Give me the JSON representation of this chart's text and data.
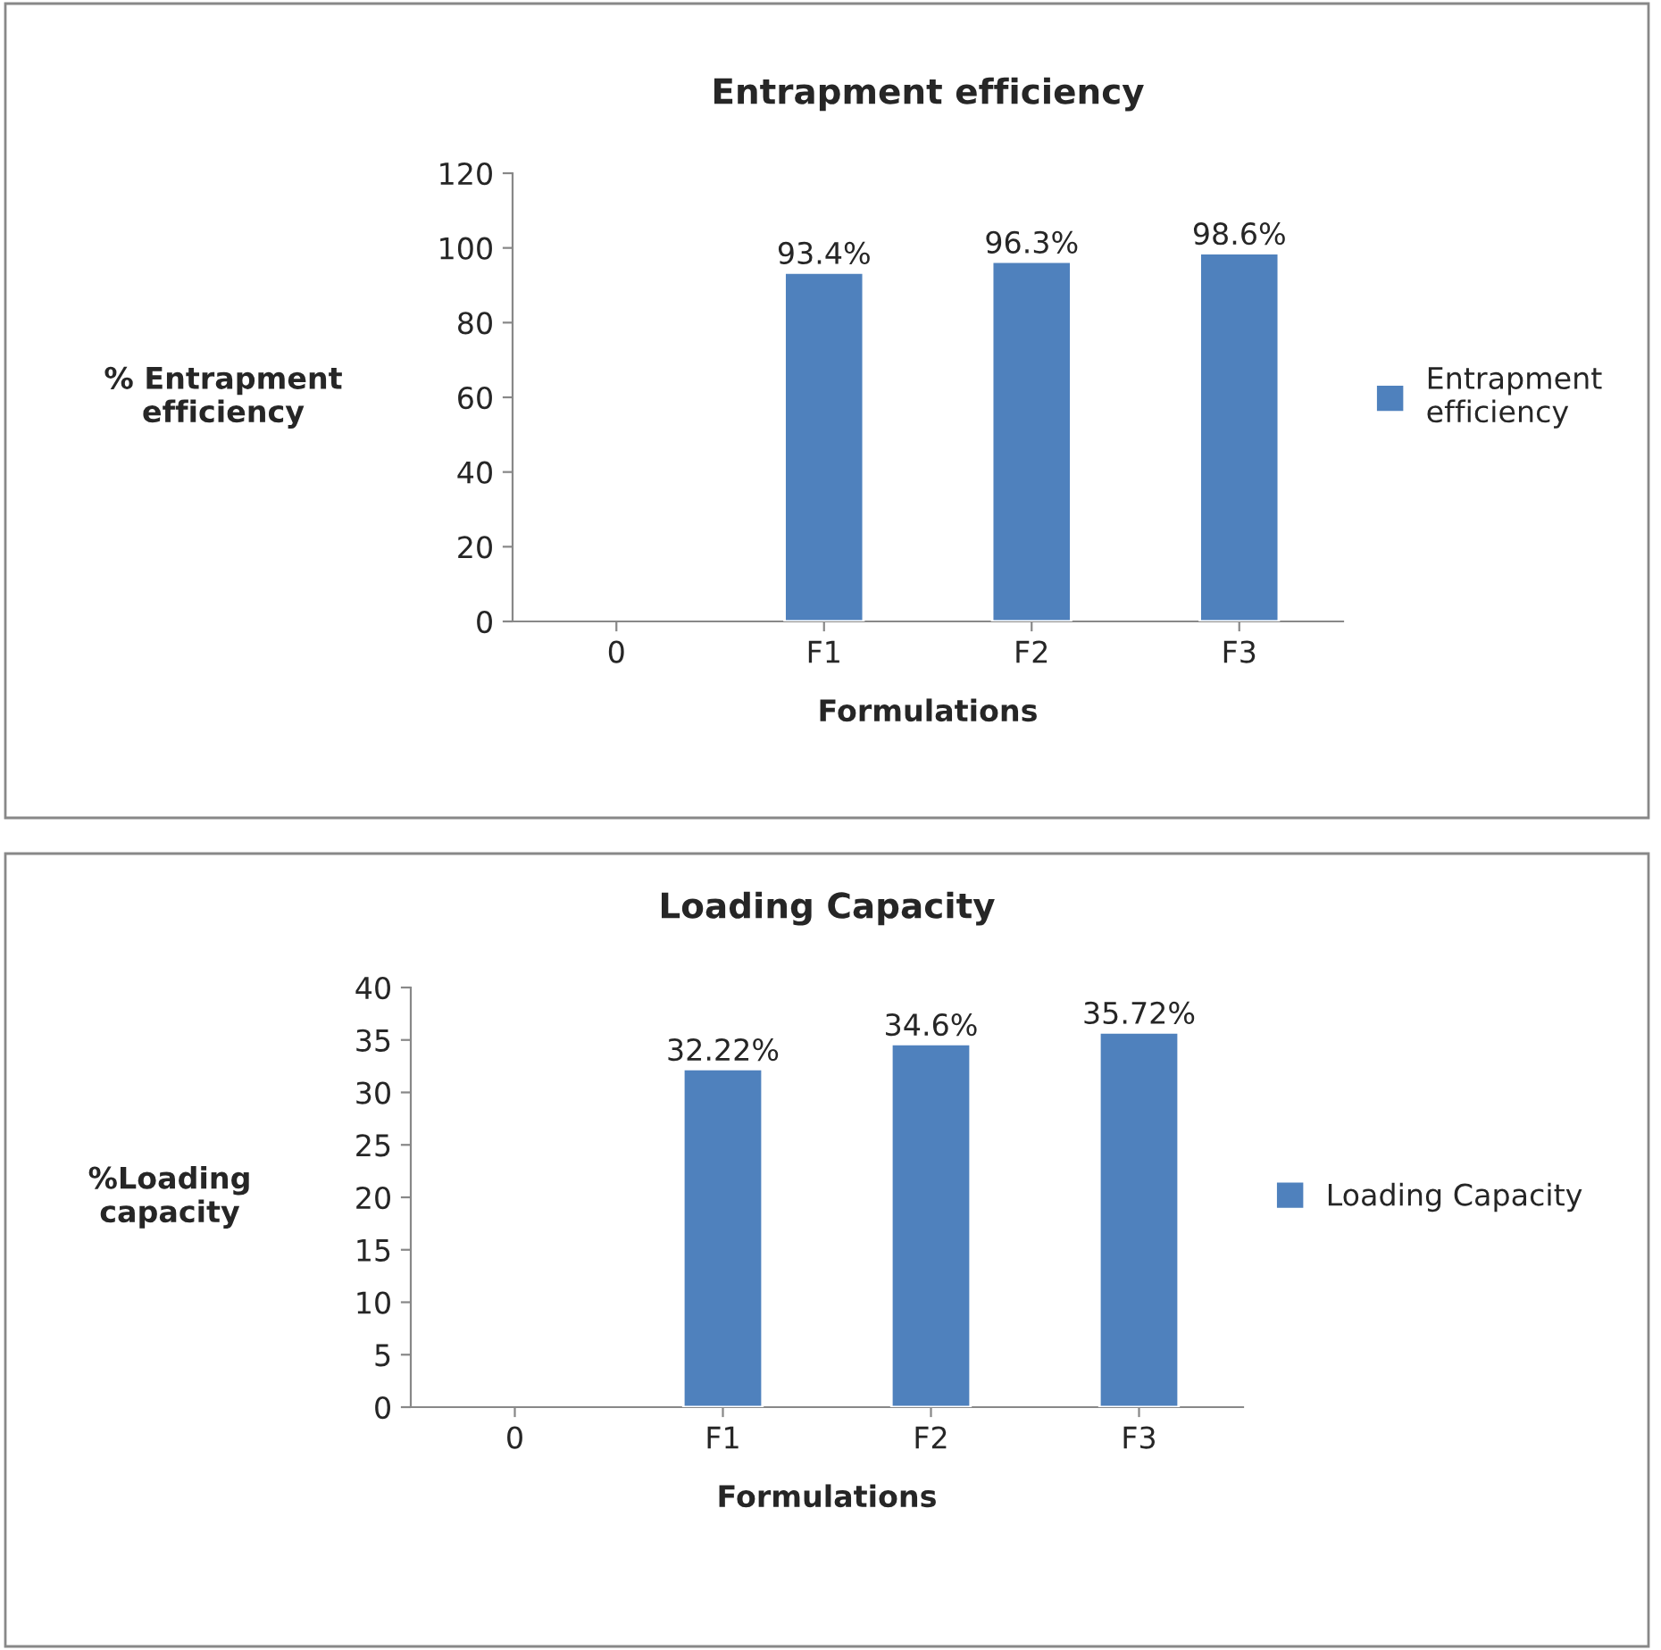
{
  "chart_data": [
    {
      "type": "bar",
      "title": "Entrapment efficiency",
      "xlabel": "Formulations",
      "ylabel": "% Entrapment efficiency",
      "categories": [
        "0",
        "F1",
        "F2",
        "F3"
      ],
      "series": [
        {
          "name": "Entrapment efficiency",
          "color": "#4f81bd",
          "values": [
            null,
            93.4,
            96.3,
            98.6
          ],
          "value_labels": [
            null,
            "93.4%",
            "96.3%",
            "98.6%"
          ]
        }
      ],
      "ylim": [
        0,
        120
      ],
      "yticks": [
        0,
        20,
        40,
        60,
        80,
        100,
        120
      ],
      "grid": false,
      "legend": "right"
    },
    {
      "type": "bar",
      "title": "Loading Capacity",
      "xlabel": "Formulations",
      "ylabel": "%Loading capacity",
      "categories": [
        "0",
        "F1",
        "F2",
        "F3"
      ],
      "series": [
        {
          "name": "Loading Capacity",
          "color": "#4f81bd",
          "values": [
            null,
            32.22,
            34.6,
            35.72
          ],
          "value_labels": [
            null,
            "32.22%",
            "34.6%",
            "35.72%"
          ]
        }
      ],
      "ylim": [
        0,
        40
      ],
      "yticks": [
        0,
        5,
        10,
        15,
        20,
        25,
        30,
        35,
        40
      ],
      "grid": false,
      "legend": "right"
    }
  ]
}
